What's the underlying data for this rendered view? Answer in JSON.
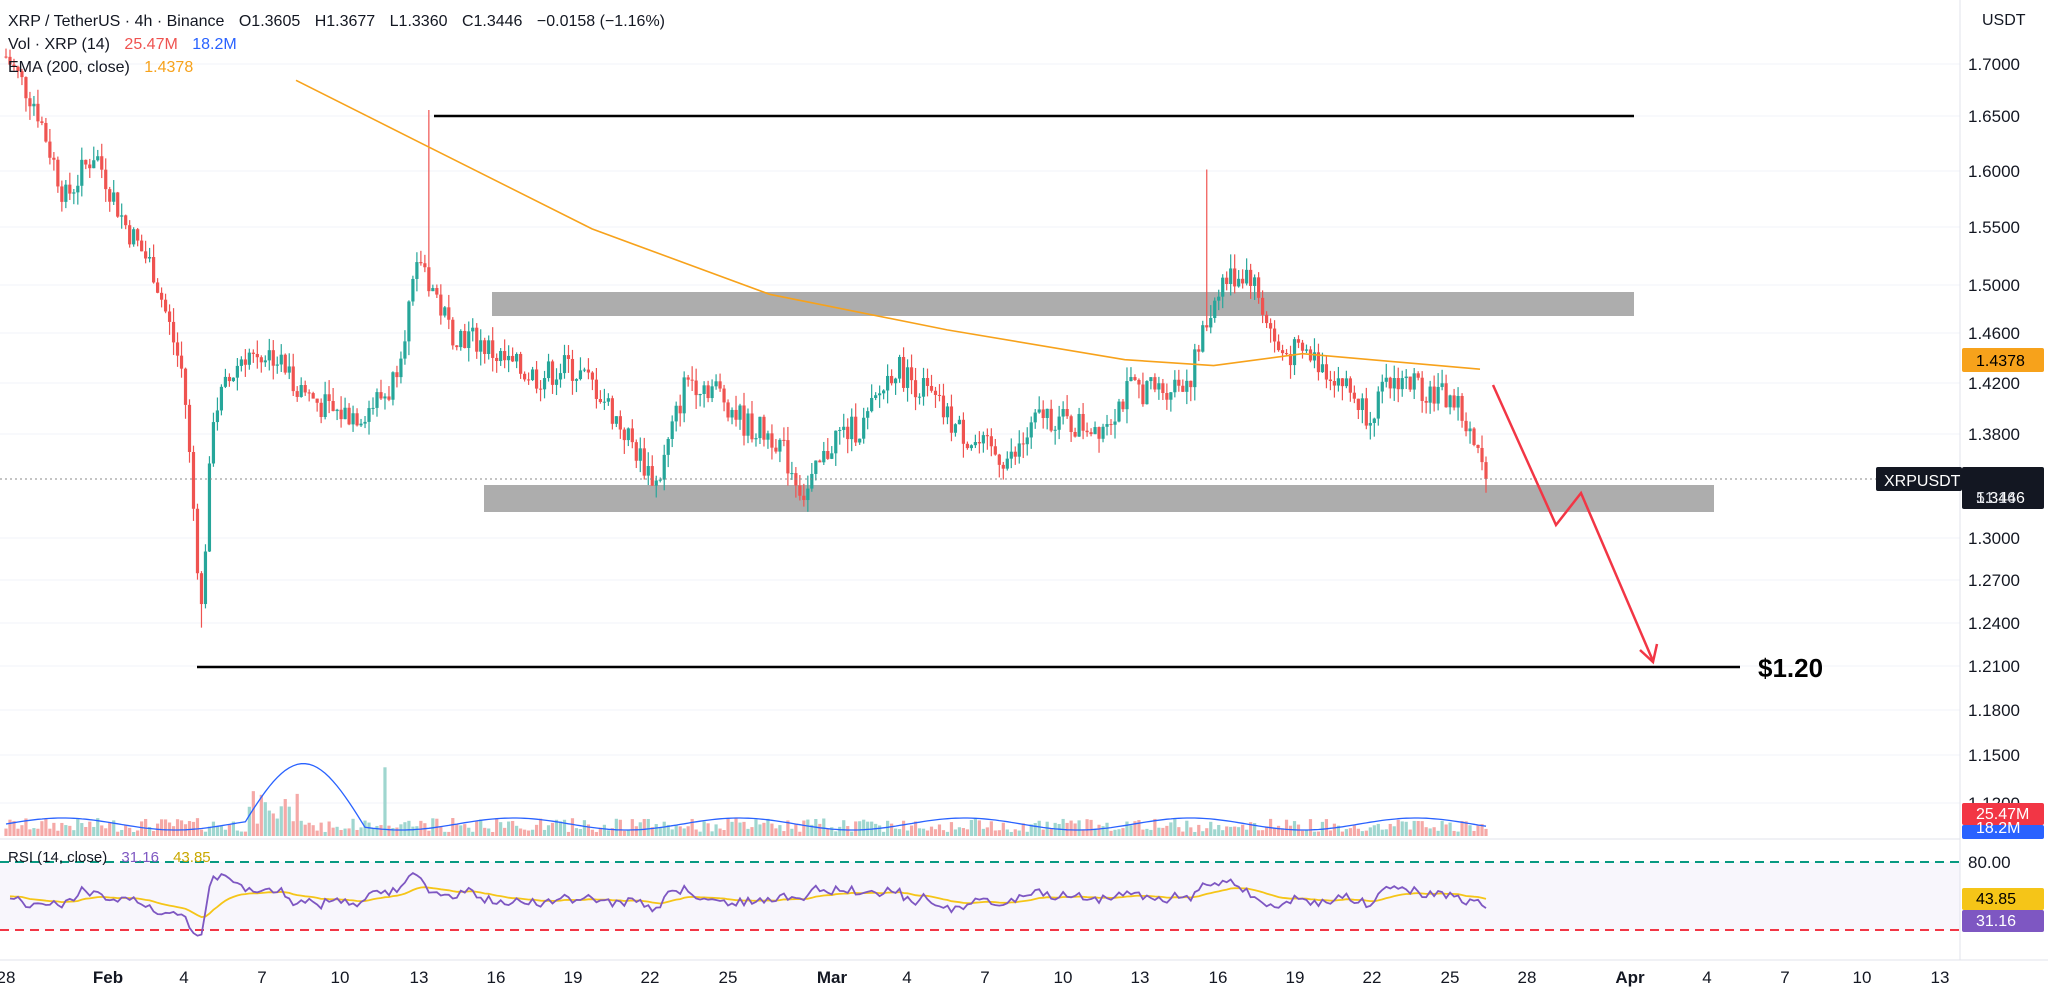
{
  "header": {
    "symbol_line": "XRP / TetherUS · 4h · Binance",
    "o": "O1.3605",
    "h": "H1.3677",
    "l": "L1.3360",
    "c": "C1.3446",
    "change": "−0.0158 (−1.16%)",
    "vol_label": "Vol · XRP (14)",
    "vol_val1": "25.47M",
    "vol_val2": "18.2M",
    "ema_label": "EMA (200, close)",
    "ema_val": "1.4378",
    "rsi_label": "RSI (14, close)",
    "rsi_val1": "31.16",
    "rsi_val2": "43.85"
  },
  "price_scale": {
    "title": "USDT",
    "ticks": [
      "1.7000",
      "1.6500",
      "1.6000",
      "1.5500",
      "1.5000",
      "1.4600",
      "1.4200",
      "1.3800",
      "1.3000",
      "1.2700",
      "1.2400",
      "1.2100",
      "1.1800",
      "1.1500",
      "1.1200"
    ],
    "ema_badge": "1.4378",
    "symbol_badge": "XRPUSDT",
    "price_badge": "1.3446",
    "countdown": "51:16",
    "vol_badge1": "25.47M",
    "vol_badge2": "18.2M"
  },
  "rsi_scale": {
    "ticks": [
      "80.00"
    ],
    "badge_ma": "43.85",
    "badge_rsi": "31.16"
  },
  "time_axis": [
    "28",
    "Feb",
    "4",
    "7",
    "10",
    "13",
    "16",
    "19",
    "22",
    "25",
    "Mar",
    "4",
    "7",
    "10",
    "13",
    "16",
    "19",
    "22",
    "25",
    "28",
    "Apr",
    "4",
    "7",
    "10",
    "13"
  ],
  "annotation": {
    "target_label": "$1.20"
  },
  "colors": {
    "up": "#26a69a",
    "down": "#ef5350",
    "ema": "#f7a21b",
    "rsi": "#7e57c2",
    "rsi_ma": "#f5c518",
    "arrow": "#f23645",
    "zone": "#a9a9a9"
  },
  "chart_data": {
    "type": "candlestick",
    "symbol": "XRP / TetherUS",
    "timeframe": "4h",
    "ylim": [
      1.1,
      1.72
    ],
    "ohlc_last": {
      "open": 1.3605,
      "high": 1.3677,
      "low": 1.336,
      "close": 1.3446
    },
    "ema200_last": 1.4378,
    "close_path": [
      [
        0,
        1.7
      ],
      [
        1,
        1.66
      ],
      [
        2,
        1.58
      ],
      [
        3,
        1.62
      ],
      [
        4,
        1.56
      ],
      [
        5,
        1.52
      ],
      [
        6,
        1.43
      ],
      [
        6.6,
        1.23
      ],
      [
        7,
        1.4
      ],
      [
        8,
        1.45
      ],
      [
        9,
        1.45
      ],
      [
        10,
        1.42
      ],
      [
        11,
        1.4
      ],
      [
        12,
        1.4
      ],
      [
        13,
        1.42
      ],
      [
        14,
        1.53
      ],
      [
        15,
        1.47
      ],
      [
        16,
        1.46
      ],
      [
        17,
        1.44
      ],
      [
        18,
        1.43
      ],
      [
        19,
        1.44
      ],
      [
        20,
        1.42
      ],
      [
        21,
        1.38
      ],
      [
        22,
        1.34
      ],
      [
        23,
        1.43
      ],
      [
        24,
        1.42
      ],
      [
        25,
        1.39
      ],
      [
        26,
        1.38
      ],
      [
        27,
        1.33
      ],
      [
        28,
        1.38
      ],
      [
        29,
        1.39
      ],
      [
        30,
        1.44
      ],
      [
        31,
        1.42
      ],
      [
        32,
        1.39
      ],
      [
        33,
        1.37
      ],
      [
        34,
        1.36
      ],
      [
        35,
        1.4
      ],
      [
        36,
        1.39
      ],
      [
        37,
        1.39
      ],
      [
        38,
        1.42
      ],
      [
        39,
        1.42
      ],
      [
        40,
        1.43
      ],
      [
        41,
        1.51
      ],
      [
        42,
        1.52
      ],
      [
        43,
        1.45
      ],
      [
        44,
        1.45
      ],
      [
        45,
        1.43
      ],
      [
        46,
        1.4
      ],
      [
        47,
        1.43
      ],
      [
        48,
        1.42
      ],
      [
        49,
        1.41
      ],
      [
        50,
        1.3446
      ]
    ],
    "ema_path": [
      [
        10,
        1.68
      ],
      [
        14,
        1.63
      ],
      [
        20,
        1.555
      ],
      [
        26,
        1.5
      ],
      [
        32,
        1.47
      ],
      [
        38,
        1.445
      ],
      [
        41,
        1.44
      ],
      [
        44,
        1.45
      ],
      [
        50,
        1.437
      ]
    ],
    "resistance_line": 1.65,
    "support_line": 1.21,
    "upper_zone": [
      1.475,
      1.495
    ],
    "lower_zone": [
      1.325,
      1.345
    ],
    "projection": [
      [
        50.2,
        1.418
      ],
      [
        52.0,
        1.322
      ],
      [
        53.0,
        1.344
      ],
      [
        54.9,
        1.213
      ]
    ],
    "rsi": {
      "overbought": 80,
      "oversold": 20,
      "last": 31.16,
      "ma_last": 43.85
    }
  }
}
